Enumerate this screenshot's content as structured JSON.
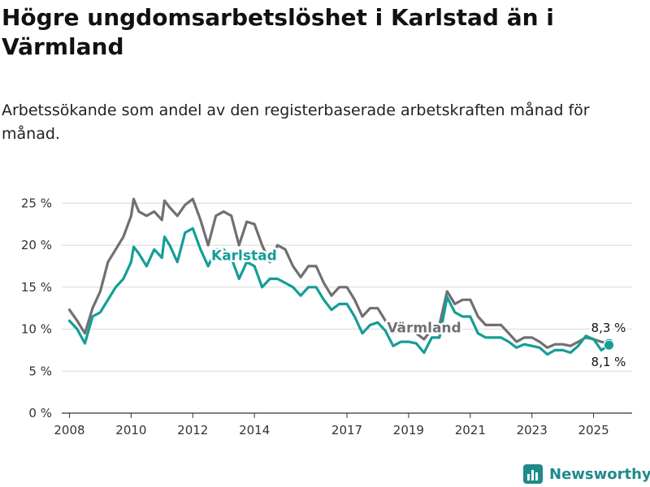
{
  "title": "Högre ungdomsarbetslöshet i Karlstad än i Värmland",
  "subtitle": "Arbetssökande som andel av den registerbaserade arbetskraften månad för månad.",
  "logo": {
    "text": "Newsworthy",
    "icon": "newsworthy-chart-logo-icon",
    "color": "#1f8a8a"
  },
  "chart_data": {
    "type": "line",
    "x_ticks": [
      "2008",
      "2010",
      "2012",
      "2014",
      "2017",
      "2019",
      "2021",
      "2023",
      "2025"
    ],
    "y_ticks": [
      "0 %",
      "5 %",
      "10 %",
      "15 %",
      "20 %",
      "25 %"
    ],
    "ylim": [
      0,
      26
    ],
    "xlim": [
      "2007-10",
      "2026-04"
    ],
    "grid": true,
    "series": [
      {
        "name": "Värmland",
        "color": "#707074",
        "points": [
          [
            "2008-01",
            12.3
          ],
          [
            "2008-04",
            11.0
          ],
          [
            "2008-07",
            9.5
          ],
          [
            "2008-10",
            12.5
          ],
          [
            "2009-01",
            14.5
          ],
          [
            "2009-04",
            18.0
          ],
          [
            "2009-07",
            19.5
          ],
          [
            "2009-10",
            21.0
          ],
          [
            "2010-01",
            23.5
          ],
          [
            "2010-02",
            25.5
          ],
          [
            "2010-04",
            24.0
          ],
          [
            "2010-07",
            23.5
          ],
          [
            "2010-10",
            24.0
          ],
          [
            "2011-01",
            23.0
          ],
          [
            "2011-02",
            25.3
          ],
          [
            "2011-04",
            24.5
          ],
          [
            "2011-07",
            23.5
          ],
          [
            "2011-10",
            24.8
          ],
          [
            "2012-01",
            25.5
          ],
          [
            "2012-04",
            23.0
          ],
          [
            "2012-07",
            20.0
          ],
          [
            "2012-10",
            23.5
          ],
          [
            "2013-01",
            24.0
          ],
          [
            "2013-04",
            23.5
          ],
          [
            "2013-07",
            20.0
          ],
          [
            "2013-10",
            22.8
          ],
          [
            "2014-01",
            22.5
          ],
          [
            "2014-04",
            20.0
          ],
          [
            "2014-07",
            18.0
          ],
          [
            "2014-10",
            20.0
          ],
          [
            "2015-01",
            19.5
          ],
          [
            "2015-04",
            17.5
          ],
          [
            "2015-07",
            16.2
          ],
          [
            "2015-10",
            17.5
          ],
          [
            "2016-01",
            17.5
          ],
          [
            "2016-04",
            15.5
          ],
          [
            "2016-07",
            14.0
          ],
          [
            "2016-10",
            15.0
          ],
          [
            "2017-01",
            15.0
          ],
          [
            "2017-04",
            13.5
          ],
          [
            "2017-07",
            11.5
          ],
          [
            "2017-10",
            12.5
          ],
          [
            "2018-01",
            12.5
          ],
          [
            "2018-04",
            11.0
          ],
          [
            "2018-07",
            9.5
          ],
          [
            "2018-10",
            10.0
          ],
          [
            "2019-01",
            10.0
          ],
          [
            "2019-04",
            9.5
          ],
          [
            "2019-07",
            8.8
          ],
          [
            "2019-10",
            10.0
          ],
          [
            "2020-01",
            10.5
          ],
          [
            "2020-04",
            14.5
          ],
          [
            "2020-07",
            13.0
          ],
          [
            "2020-10",
            13.5
          ],
          [
            "2021-01",
            13.5
          ],
          [
            "2021-04",
            11.5
          ],
          [
            "2021-07",
            10.5
          ],
          [
            "2021-10",
            10.5
          ],
          [
            "2022-01",
            10.5
          ],
          [
            "2022-04",
            9.5
          ],
          [
            "2022-07",
            8.5
          ],
          [
            "2022-10",
            9.0
          ],
          [
            "2023-01",
            9.0
          ],
          [
            "2023-04",
            8.5
          ],
          [
            "2023-07",
            7.8
          ],
          [
            "2023-10",
            8.2
          ],
          [
            "2024-01",
            8.2
          ],
          [
            "2024-04",
            8.0
          ],
          [
            "2024-07",
            8.5
          ],
          [
            "2024-10",
            9.0
          ],
          [
            "2025-01",
            8.8
          ],
          [
            "2025-04",
            8.5
          ],
          [
            "2025-07",
            8.3
          ]
        ],
        "end_label": "8,3 %"
      },
      {
        "name": "Karlstad",
        "color": "#149e96",
        "points": [
          [
            "2008-01",
            11.0
          ],
          [
            "2008-04",
            10.0
          ],
          [
            "2008-07",
            8.3
          ],
          [
            "2008-10",
            11.5
          ],
          [
            "2009-01",
            12.0
          ],
          [
            "2009-04",
            13.5
          ],
          [
            "2009-07",
            15.0
          ],
          [
            "2009-10",
            16.0
          ],
          [
            "2010-01",
            18.0
          ],
          [
            "2010-02",
            19.8
          ],
          [
            "2010-04",
            19.0
          ],
          [
            "2010-07",
            17.5
          ],
          [
            "2010-10",
            19.5
          ],
          [
            "2011-01",
            18.5
          ],
          [
            "2011-02",
            21.0
          ],
          [
            "2011-04",
            20.0
          ],
          [
            "2011-07",
            18.0
          ],
          [
            "2011-10",
            21.5
          ],
          [
            "2012-01",
            22.0
          ],
          [
            "2012-04",
            19.5
          ],
          [
            "2012-07",
            17.5
          ],
          [
            "2012-10",
            19.5
          ],
          [
            "2013-01",
            19.5
          ],
          [
            "2013-04",
            18.5
          ],
          [
            "2013-07",
            16.0
          ],
          [
            "2013-10",
            18.0
          ],
          [
            "2014-01",
            17.5
          ],
          [
            "2014-04",
            15.0
          ],
          [
            "2014-07",
            16.0
          ],
          [
            "2014-10",
            16.0
          ],
          [
            "2015-01",
            15.5
          ],
          [
            "2015-04",
            15.0
          ],
          [
            "2015-07",
            14.0
          ],
          [
            "2015-10",
            15.0
          ],
          [
            "2016-01",
            15.0
          ],
          [
            "2016-04",
            13.5
          ],
          [
            "2016-07",
            12.3
          ],
          [
            "2016-10",
            13.0
          ],
          [
            "2017-01",
            13.0
          ],
          [
            "2017-04",
            11.5
          ],
          [
            "2017-07",
            9.5
          ],
          [
            "2017-10",
            10.5
          ],
          [
            "2018-01",
            10.8
          ],
          [
            "2018-04",
            9.8
          ],
          [
            "2018-07",
            8.0
          ],
          [
            "2018-10",
            8.5
          ],
          [
            "2019-01",
            8.5
          ],
          [
            "2019-04",
            8.3
          ],
          [
            "2019-07",
            7.2
          ],
          [
            "2019-10",
            9.0
          ],
          [
            "2020-01",
            9.0
          ],
          [
            "2020-04",
            13.8
          ],
          [
            "2020-07",
            12.0
          ],
          [
            "2020-10",
            11.5
          ],
          [
            "2021-01",
            11.5
          ],
          [
            "2021-04",
            9.5
          ],
          [
            "2021-07",
            9.0
          ],
          [
            "2021-10",
            9.0
          ],
          [
            "2022-01",
            9.0
          ],
          [
            "2022-04",
            8.5
          ],
          [
            "2022-07",
            7.8
          ],
          [
            "2022-10",
            8.2
          ],
          [
            "2023-01",
            8.0
          ],
          [
            "2023-04",
            7.8
          ],
          [
            "2023-07",
            7.0
          ],
          [
            "2023-10",
            7.5
          ],
          [
            "2024-01",
            7.5
          ],
          [
            "2024-04",
            7.2
          ],
          [
            "2024-07",
            8.0
          ],
          [
            "2024-10",
            9.2
          ],
          [
            "2025-01",
            8.8
          ],
          [
            "2025-04",
            7.5
          ],
          [
            "2025-07",
            8.1
          ]
        ],
        "end_label": "8,1 %"
      }
    ]
  }
}
